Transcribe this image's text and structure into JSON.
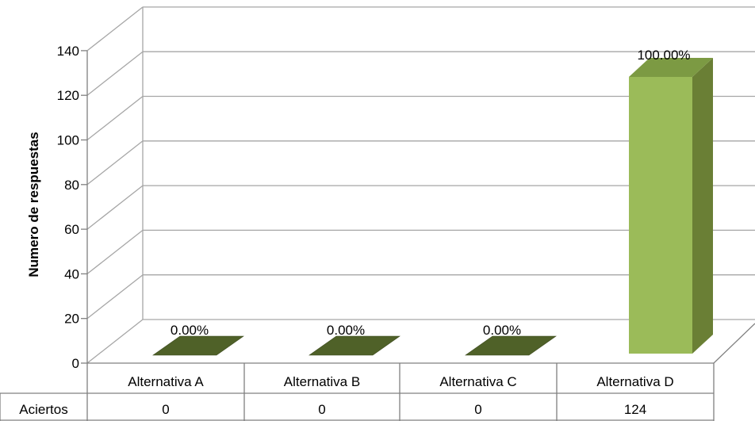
{
  "chart_data": {
    "type": "bar",
    "ylabel": "Numero de respuestas",
    "yticks": [
      "0",
      "20",
      "40",
      "60",
      "80",
      "100",
      "120",
      "140"
    ],
    "ylim": [
      0,
      140
    ],
    "grid": true,
    "categories": [
      "Alternativa A",
      "Alternativa B",
      "Alternativa C",
      "Alternativa D"
    ],
    "series": [
      {
        "name": "Aciertos",
        "values": [
          0,
          0,
          0,
          124
        ]
      }
    ],
    "data_labels": [
      "0.00%",
      "0.00%",
      "0.00%",
      "100.00%"
    ],
    "table": {
      "row_label": "Aciertos",
      "values": [
        "0",
        "0",
        "0",
        "124"
      ]
    },
    "colors": {
      "bar_front": "#9BBB59",
      "bar_side": "#6A7F35",
      "bar_top": "#7C9A43",
      "flat_bar": "#4F6128",
      "grid": "#A6A6A6",
      "axis": "#808080"
    }
  }
}
